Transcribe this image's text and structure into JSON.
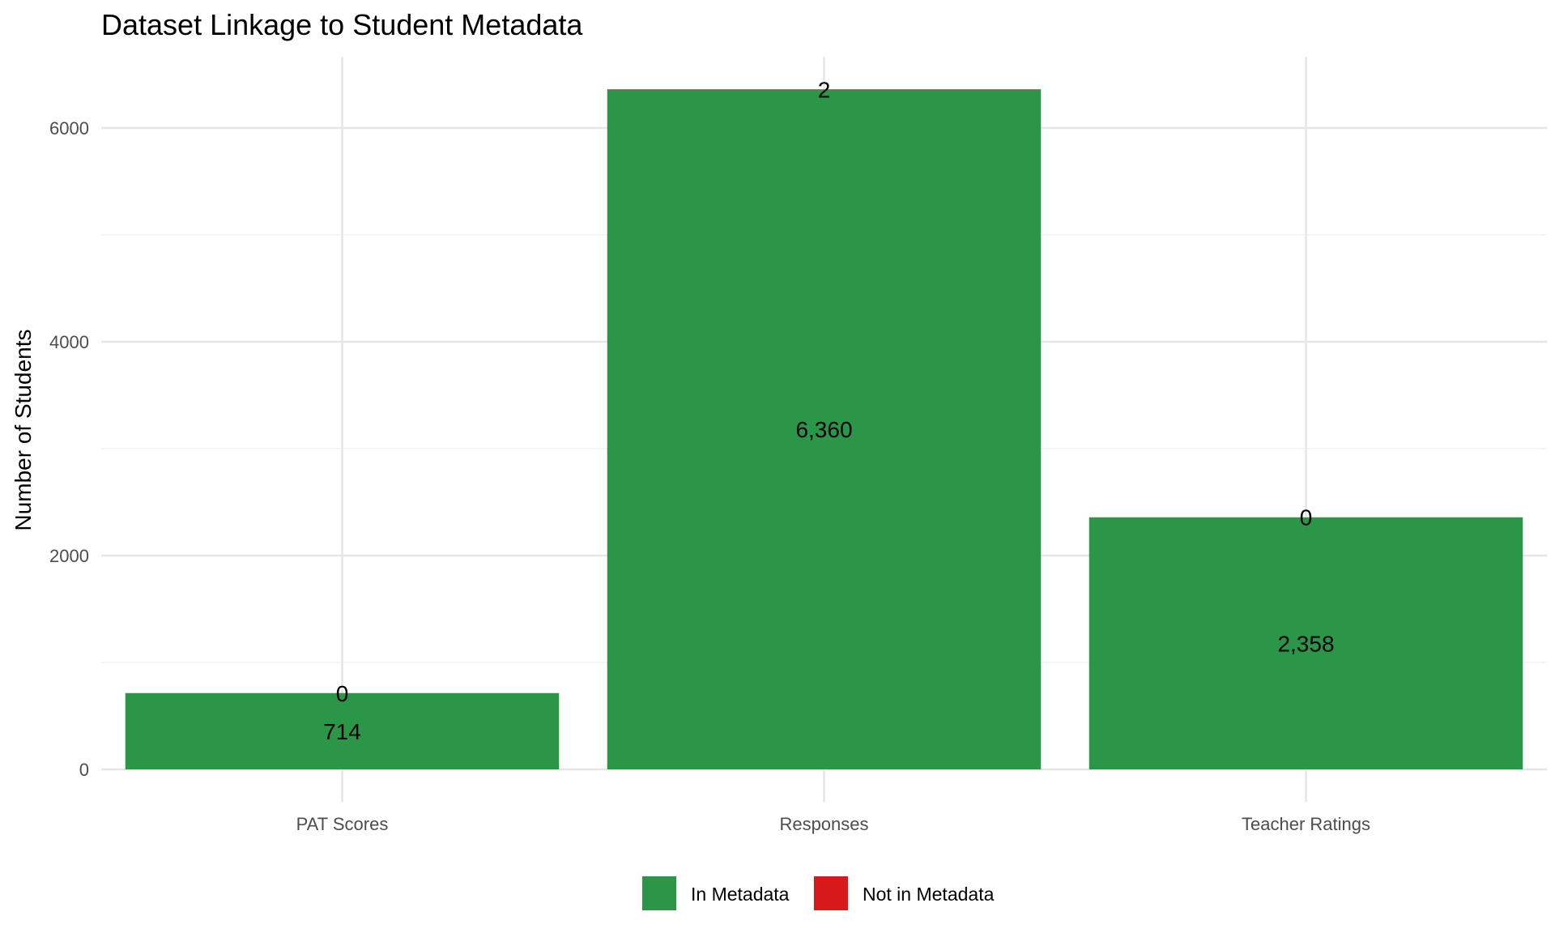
{
  "chart_data": {
    "type": "bar",
    "stacked": true,
    "title": "Dataset Linkage to Student Metadata",
    "xlabel": "",
    "ylabel": "Number of Students",
    "categories": [
      "PAT Scores",
      "Responses",
      "Teacher Ratings"
    ],
    "series": [
      {
        "name": "In Metadata",
        "color": "#2b9647",
        "values": [
          714,
          6360,
          2358
        ],
        "labels": [
          "714",
          "6,360",
          "2,358"
        ]
      },
      {
        "name": "Not in Metadata",
        "color": "#d7191c",
        "values": [
          0,
          2,
          0
        ],
        "labels": [
          "0",
          "2",
          "0"
        ]
      }
    ],
    "ylim": [
      0,
      6650
    ],
    "yticks": [
      0,
      2000,
      4000,
      6000
    ],
    "grid": true,
    "legend_position": "bottom"
  }
}
